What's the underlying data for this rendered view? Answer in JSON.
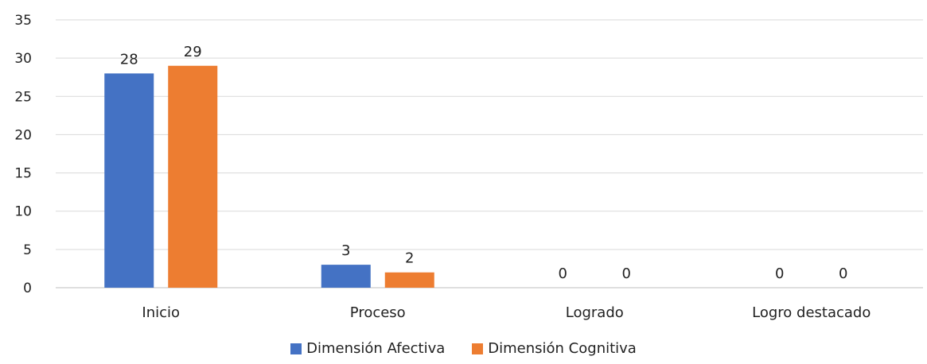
{
  "chart_data": {
    "type": "bar",
    "title": "",
    "xlabel": "",
    "ylabel": "",
    "categories": [
      "Inicio",
      "Proceso",
      "Logrado",
      "Logro destacado"
    ],
    "series": [
      {
        "name": "Dimensión Afectiva",
        "values": [
          28,
          3,
          0,
          0
        ],
        "color": "#4472C4"
      },
      {
        "name": "Dimensión Cognitiva",
        "values": [
          29,
          2,
          0,
          0
        ],
        "color": "#ED7D31"
      }
    ],
    "ylim": [
      0,
      35
    ],
    "yticks": [
      "0",
      "5",
      "10",
      "15",
      "20",
      "25",
      "30",
      "35"
    ],
    "grid": true,
    "legend_position": "bottom"
  }
}
